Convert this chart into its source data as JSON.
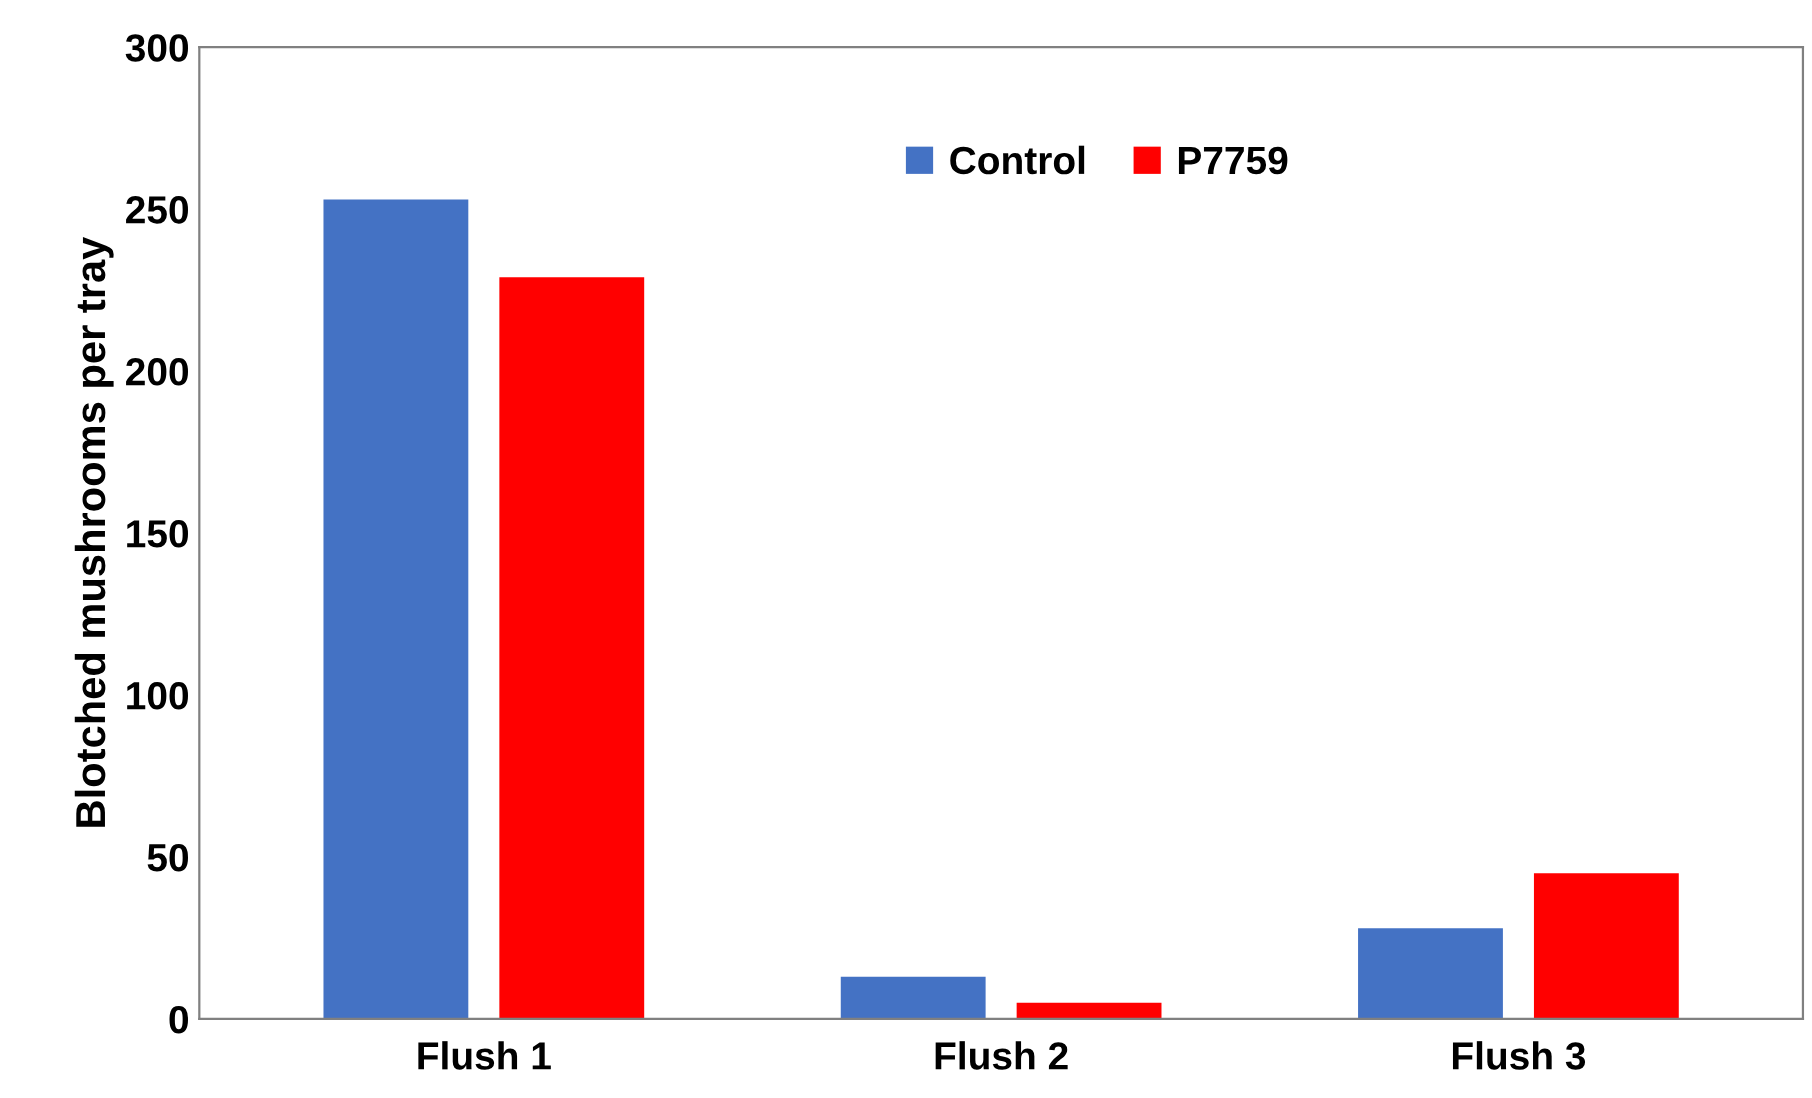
{
  "chart_data": {
    "type": "bar",
    "ylabel": "Blotched mushrooms per tray",
    "categories": [
      "Flush 1",
      "Flush 2",
      "Flush 3"
    ],
    "series": [
      {
        "name": "Control",
        "color": "#4472c4",
        "values": [
          253,
          13,
          28
        ]
      },
      {
        "name": "P7759",
        "color": "#ff0000",
        "values": [
          229,
          5,
          45
        ]
      }
    ],
    "ylim": [
      0,
      300
    ],
    "yticks": [
      0,
      50,
      100,
      150,
      200,
      250,
      300
    ],
    "grid": false,
    "legend": "top"
  }
}
